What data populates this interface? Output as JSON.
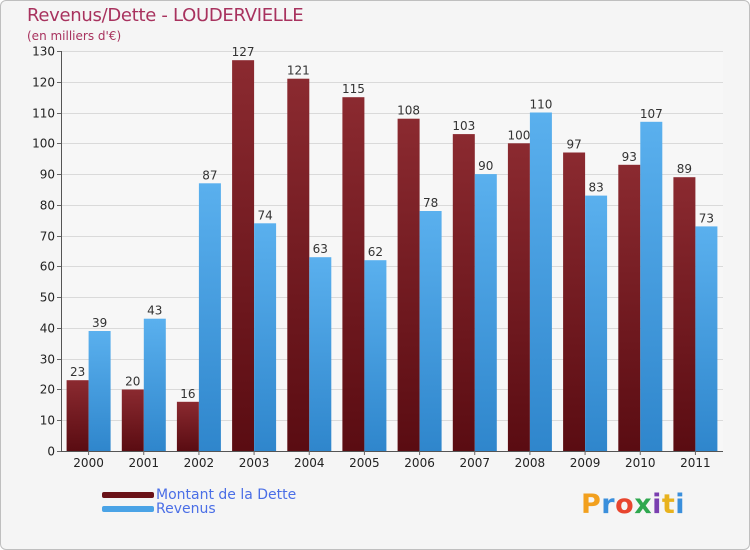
{
  "title": "Revenus/Dette - LOUDERVIELLE",
  "subtitle": "(en milliers d'€)",
  "logo_text": "Proxiti",
  "colors": {
    "title": "#a8325e",
    "dette": "#7a1a20",
    "revenus": "#4aa3e6",
    "legend_text": "#4a6ee6"
  },
  "chart_data": {
    "type": "bar",
    "title": "Revenus/Dette - LOUDERVIELLE",
    "ylabel": "(en milliers d'€)",
    "xlabel": "",
    "categories": [
      "2000",
      "2001",
      "2002",
      "2003",
      "2004",
      "2005",
      "2006",
      "2007",
      "2008",
      "2009",
      "2010",
      "2011"
    ],
    "series": [
      {
        "name": "Montant de la Dette",
        "values": [
          23,
          20,
          16,
          127,
          121,
          115,
          108,
          103,
          100,
          97,
          93,
          89
        ]
      },
      {
        "name": "Revenus",
        "values": [
          39,
          43,
          87,
          74,
          63,
          62,
          78,
          90,
          110,
          83,
          107,
          73
        ]
      }
    ],
    "ylim": [
      0,
      130
    ],
    "yticks": [
      0,
      10,
      20,
      30,
      40,
      50,
      60,
      70,
      80,
      90,
      100,
      110,
      120,
      130
    ],
    "grid": true,
    "legend_position": "bottom-left"
  }
}
